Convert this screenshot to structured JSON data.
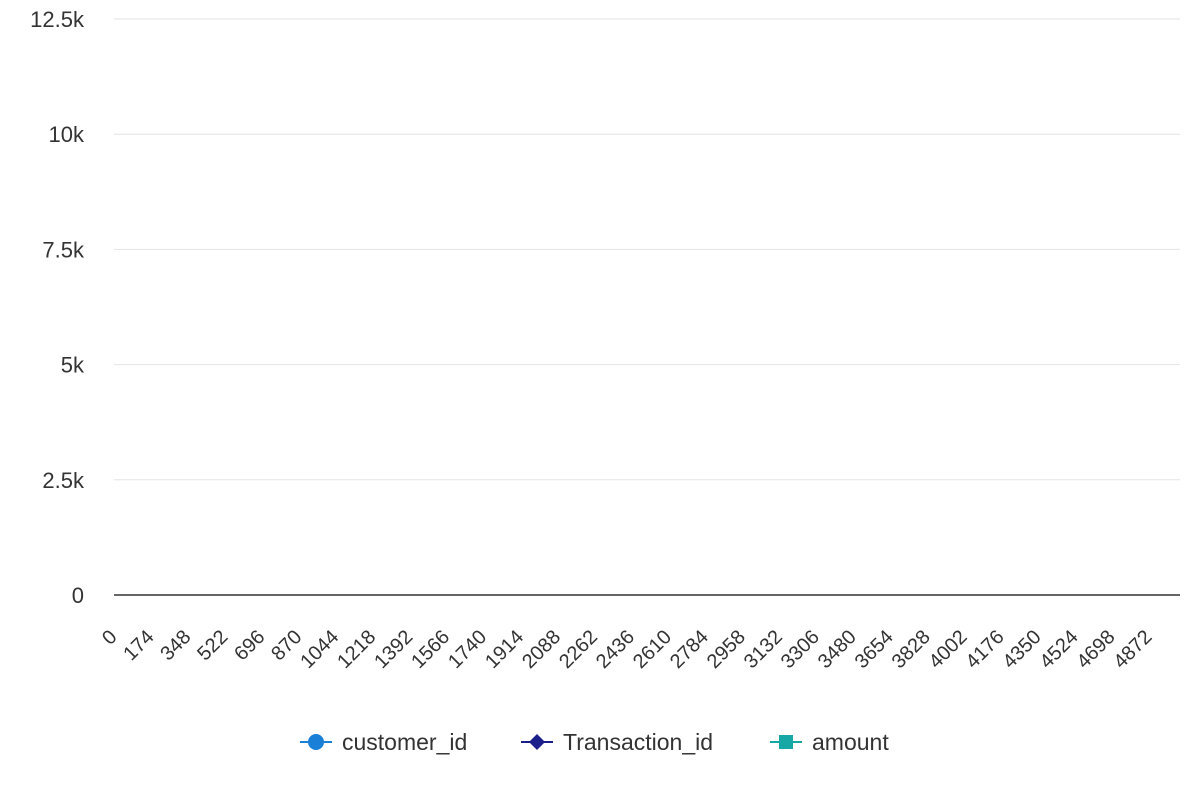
{
  "chart_data": {
    "type": "line",
    "title": "",
    "xlabel": "",
    "ylabel": "",
    "ylim": [
      0,
      12500
    ],
    "xlim": [
      0,
      4872
    ],
    "y_ticks": [
      0,
      2500,
      5000,
      7500,
      10000,
      12500
    ],
    "y_tick_labels": [
      "0",
      "2.5k",
      "5k",
      "7.5k",
      "10k",
      "12.5k"
    ],
    "x_ticks": [
      0,
      174,
      348,
      522,
      696,
      870,
      1044,
      1218,
      1392,
      1566,
      1740,
      1914,
      2088,
      2262,
      2436,
      2610,
      2784,
      2958,
      3132,
      3306,
      3480,
      3654,
      3828,
      4002,
      4176,
      4350,
      4524,
      4698,
      4872
    ],
    "x_tick_labels": [
      "0",
      "174",
      "348",
      "522",
      "696",
      "870",
      "1044",
      "1218",
      "1392",
      "1566",
      "1740",
      "1914",
      "2088",
      "2262",
      "2436",
      "2610",
      "2784",
      "2958",
      "3132",
      "3306",
      "3480",
      "3654",
      "3828",
      "4002",
      "4176",
      "4350",
      "4524",
      "4698",
      "4872"
    ],
    "grid": true,
    "legend_position": "bottom-center",
    "series": [
      {
        "name": "customer_id",
        "color": "#1a7fd6",
        "marker": "circle",
        "values": []
      },
      {
        "name": "Transaction_id",
        "color": "#1b1f8a",
        "marker": "diamond",
        "values": []
      },
      {
        "name": "amount",
        "color": "#17a8a5",
        "marker": "square",
        "values": []
      }
    ]
  }
}
